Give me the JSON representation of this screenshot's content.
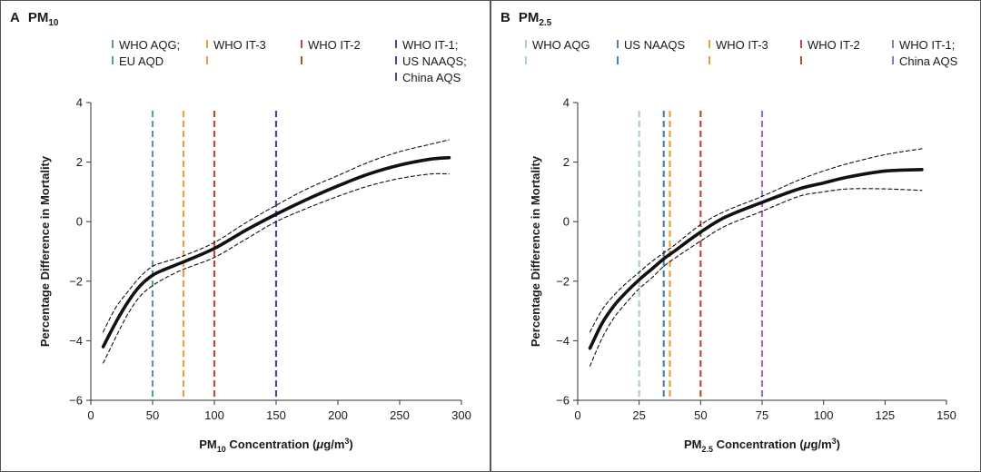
{
  "chart_data": [
    {
      "type": "line",
      "panel_letter": "A",
      "title_main": "PM",
      "title_sub": "10",
      "xlabel_pre": "PM",
      "xlabel_sub": "10",
      "xlabel_post": " Concentration (",
      "xlabel_mu": "μ",
      "xlabel_unit": "g/m",
      "xlabel_sup": "3",
      "xlabel_close": ")",
      "ylabel": "Percentage Difference in Mortality",
      "xlim": [
        0,
        300
      ],
      "ylim": [
        -6,
        4
      ],
      "xticks": [
        0,
        50,
        100,
        150,
        200,
        250,
        300
      ],
      "yticks": [
        -6,
        -4,
        -2,
        0,
        2,
        4
      ],
      "series": [
        {
          "role": "estimate",
          "x": [
            10,
            20,
            30,
            40,
            50,
            60,
            75,
            100,
            125,
            150,
            175,
            200,
            225,
            250,
            275,
            290
          ],
          "y": [
            -4.2,
            -3.4,
            -2.7,
            -2.15,
            -1.8,
            -1.6,
            -1.35,
            -0.9,
            -0.3,
            0.25,
            0.75,
            1.2,
            1.6,
            1.9,
            2.1,
            2.15
          ]
        },
        {
          "role": "upper-ci",
          "x": [
            10,
            20,
            30,
            40,
            50,
            60,
            75,
            100,
            125,
            150,
            175,
            200,
            225,
            250,
            275,
            290
          ],
          "y": [
            -3.7,
            -2.9,
            -2.35,
            -1.85,
            -1.5,
            -1.35,
            -1.15,
            -0.7,
            -0.05,
            0.55,
            1.1,
            1.55,
            2.0,
            2.35,
            2.6,
            2.75
          ]
        },
        {
          "role": "lower-ci",
          "x": [
            10,
            20,
            30,
            40,
            50,
            60,
            75,
            100,
            125,
            150,
            175,
            200,
            225,
            250,
            275,
            290
          ],
          "y": [
            -4.75,
            -3.9,
            -3.1,
            -2.5,
            -2.15,
            -1.9,
            -1.6,
            -1.2,
            -0.6,
            0.0,
            0.45,
            0.85,
            1.2,
            1.45,
            1.6,
            1.6
          ]
        }
      ],
      "reference_lines": [
        {
          "x": 50,
          "color": "#5f98a6",
          "label": [
            "WHO AQG;",
            "EU AQD"
          ]
        },
        {
          "x": 75,
          "color": "#e6a13c",
          "label": [
            "WHO IT-3"
          ]
        },
        {
          "x": 100,
          "color": "#c0483a",
          "label": [
            "WHO IT-2"
          ]
        },
        {
          "x": 150,
          "color": "#3d4d9a",
          "label": [
            "WHO IT-1;",
            "US NAAQS;",
            "China AQS"
          ]
        }
      ]
    },
    {
      "type": "line",
      "panel_letter": "B",
      "title_main": "PM",
      "title_sub": "2.5",
      "xlabel_pre": "PM",
      "xlabel_sub": "2.5",
      "xlabel_post": " Concentration (",
      "xlabel_mu": "μ",
      "xlabel_unit": "g/m",
      "xlabel_sup": "3",
      "xlabel_close": ")",
      "ylabel": "Percentage Difference in Mortality",
      "xlim": [
        0,
        150
      ],
      "ylim": [
        -6,
        4
      ],
      "xticks": [
        0,
        25,
        50,
        75,
        100,
        125,
        150
      ],
      "yticks": [
        -6,
        -4,
        -2,
        0,
        2,
        4
      ],
      "series": [
        {
          "role": "estimate",
          "x": [
            5,
            10,
            15,
            20,
            25,
            30,
            35,
            40,
            50,
            60,
            75,
            90,
            100,
            110,
            125,
            140
          ],
          "y": [
            -4.25,
            -3.4,
            -2.8,
            -2.35,
            -1.95,
            -1.6,
            -1.25,
            -0.95,
            -0.35,
            0.15,
            0.65,
            1.1,
            1.3,
            1.5,
            1.7,
            1.75
          ]
        },
        {
          "role": "upper-ci",
          "x": [
            5,
            10,
            15,
            20,
            25,
            30,
            35,
            40,
            50,
            60,
            75,
            90,
            100,
            110,
            125,
            140
          ],
          "y": [
            -3.7,
            -2.95,
            -2.45,
            -2.05,
            -1.7,
            -1.35,
            -1.05,
            -0.75,
            -0.1,
            0.35,
            0.85,
            1.4,
            1.7,
            1.95,
            2.25,
            2.45
          ]
        },
        {
          "role": "lower-ci",
          "x": [
            5,
            10,
            15,
            20,
            25,
            30,
            35,
            40,
            50,
            60,
            75,
            90,
            100,
            110,
            125,
            140
          ],
          "y": [
            -4.85,
            -3.9,
            -3.2,
            -2.7,
            -2.25,
            -1.9,
            -1.5,
            -1.2,
            -0.65,
            -0.15,
            0.35,
            0.85,
            1.0,
            1.1,
            1.1,
            1.05
          ]
        }
      ],
      "reference_lines": [
        {
          "x": 25,
          "color": "#a9d0d8",
          "label": [
            "WHO AQG"
          ]
        },
        {
          "x": 35,
          "color": "#4d7fb0",
          "label": [
            "US NAAQS"
          ]
        },
        {
          "x": 37.5,
          "color": "#e6a13c",
          "label": [
            "WHO IT-3"
          ]
        },
        {
          "x": 50,
          "color": "#c0483a",
          "label": [
            "WHO IT-2"
          ]
        },
        {
          "x": 75,
          "color": "#9e6fb5",
          "label": [
            "WHO IT-1;",
            "China AQS"
          ]
        }
      ]
    }
  ]
}
